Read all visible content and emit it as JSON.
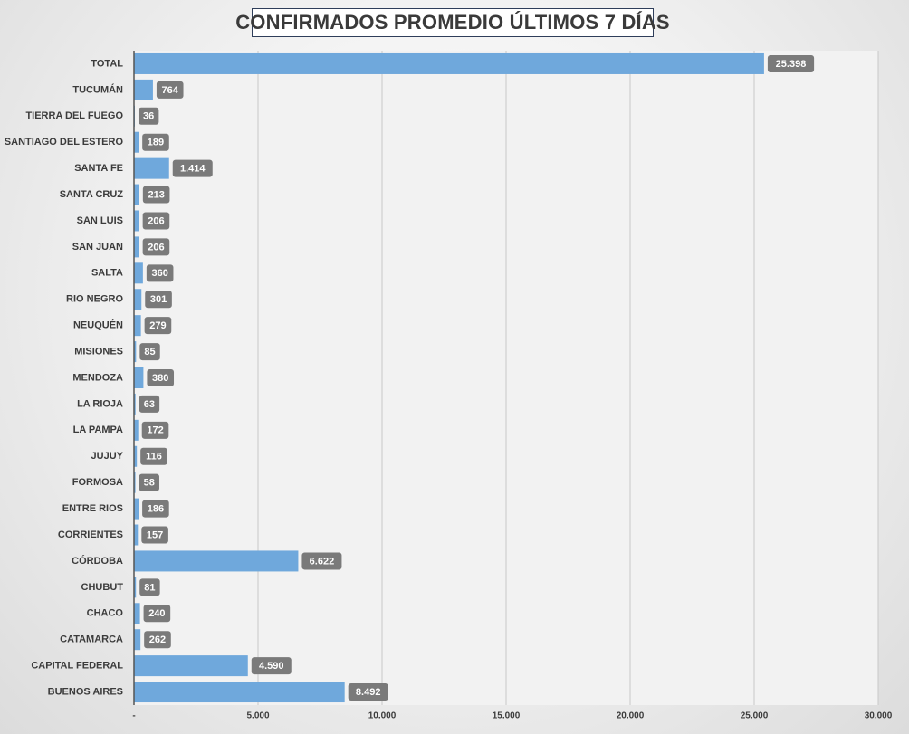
{
  "chart_data": {
    "type": "bar",
    "orientation": "horizontal",
    "title": "CONFIRMADOS PROMEDIO ÚLTIMOS 7 DÍAS",
    "xlabel": "",
    "ylabel": "",
    "xlim": [
      0,
      30000
    ],
    "x_ticks": [
      0,
      5000,
      10000,
      15000,
      20000,
      25000,
      30000
    ],
    "x_tick_labels": [
      "-",
      "5.000",
      "10.000",
      "15.000",
      "20.000",
      "25.000",
      "30.000"
    ],
    "grid": true,
    "legend": "none",
    "categories": [
      "TOTAL",
      "TUCUMÁN",
      "TIERRA  DEL FUEGO",
      "SANTIAGO  DEL ESTERO",
      "SANTA FE",
      "SANTA CRUZ",
      "SAN LUIS",
      "SAN JUAN",
      "SALTA",
      "RIO  NEGRO",
      "NEUQUÉN",
      "MISIONES",
      "MENDOZA",
      "LA RIOJA",
      "LA PAMPA",
      "JUJUY",
      "FORMOSA",
      "ENTRE  RIOS",
      "CORRIENTES",
      "CÓRDOBA",
      "CHUBUT",
      "CHACO",
      "CATAMARCA",
      "CAPITAL  FEDERAL",
      "BUENOS  AIRES"
    ],
    "values": [
      25398,
      764,
      36,
      189,
      1414,
      213,
      206,
      206,
      360,
      301,
      279,
      85,
      380,
      63,
      172,
      116,
      58,
      186,
      157,
      6622,
      81,
      240,
      262,
      4590,
      8492
    ],
    "data_labels": [
      "25.398",
      "764",
      "36",
      "189",
      "1.414",
      "213",
      "206",
      "206",
      "360",
      "301",
      "279",
      "85",
      "380",
      "63",
      "172",
      "116",
      "58",
      "186",
      "157",
      "6.622",
      "81",
      "240",
      "262",
      "4.590",
      "8.492"
    ],
    "colors": {
      "bar": "#6fa8dc",
      "label_bg": "#7a7a7a",
      "label_text": "#ffffff",
      "plot_bg": "#f2f2f2",
      "grid": "#c8c8c8",
      "axis": "#555555",
      "title_border": "#2f3e5a"
    }
  }
}
